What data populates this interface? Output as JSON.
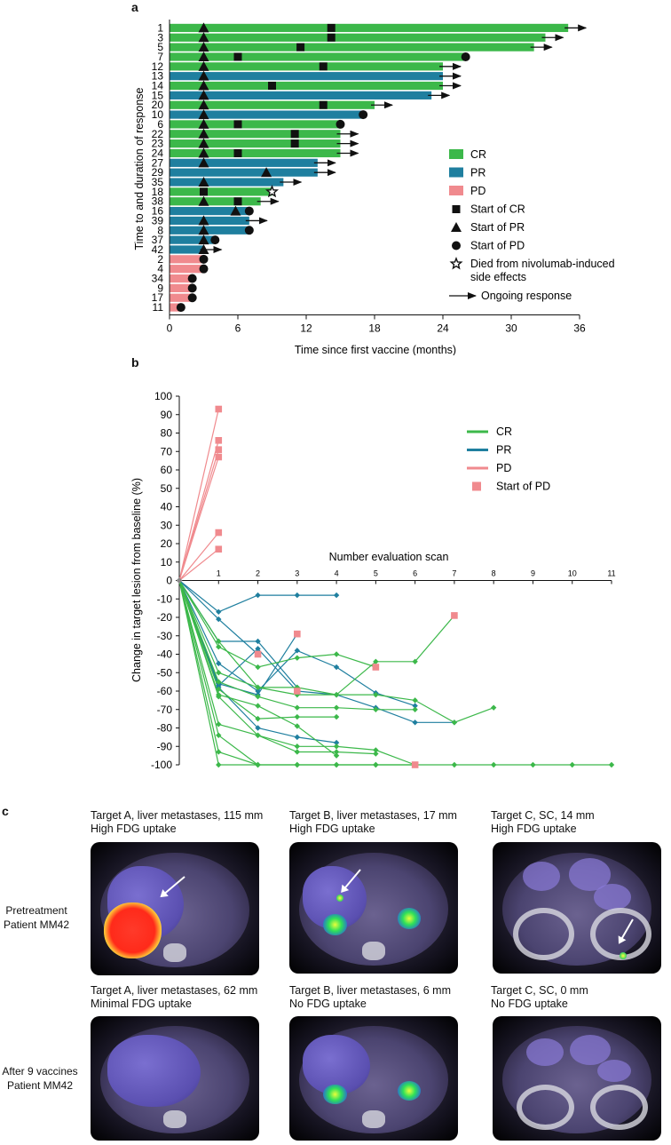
{
  "panel_letters": {
    "a": "a",
    "b": "b",
    "c": "c"
  },
  "colors": {
    "CR": "#3cb84a",
    "PR": "#1f7f9f",
    "PD": "#f08a8e"
  },
  "chart_data": [
    {
      "type": "bar",
      "orientation": "horizontal",
      "xlabel": "Time since first vaccine (months)",
      "ylabel": "Time to and duration of response",
      "xlim": [
        0,
        36
      ],
      "xticks": [
        0,
        6,
        12,
        18,
        24,
        30,
        36
      ],
      "legend": [
        {
          "label": "CR",
          "kind": "CR"
        },
        {
          "label": "PR",
          "kind": "PR"
        },
        {
          "label": "PD",
          "kind": "PD"
        },
        {
          "label": "Start of CR",
          "kind": "square"
        },
        {
          "label": "Start of PR",
          "kind": "triangle"
        },
        {
          "label": "Start of PD",
          "kind": "circle"
        },
        {
          "label": "Died from nivolumab-induced side effects",
          "kind": "star"
        },
        {
          "label": "Ongoing response",
          "kind": "arrow"
        }
      ],
      "patients": [
        {
          "id": "1",
          "response": "CR",
          "end": 35,
          "pr": 3,
          "cr": 14.2,
          "ongoing": true
        },
        {
          "id": "3",
          "response": "CR",
          "end": 33,
          "pr": 3,
          "cr": 14.2,
          "ongoing": true
        },
        {
          "id": "5",
          "response": "CR",
          "end": 32,
          "pr": 3,
          "cr": 11.5,
          "ongoing": true
        },
        {
          "id": "7",
          "response": "CR",
          "end": 26,
          "pr": 3,
          "cr": 6,
          "pd": 26
        },
        {
          "id": "12",
          "response": "CR",
          "end": 24,
          "pr": 3,
          "cr": 13.5,
          "ongoing": true
        },
        {
          "id": "13",
          "response": "PR",
          "end": 24,
          "pr": 3,
          "ongoing": true
        },
        {
          "id": "14",
          "response": "CR",
          "end": 24,
          "pr": 3,
          "cr": 9,
          "ongoing": true
        },
        {
          "id": "15",
          "response": "PR",
          "end": 23,
          "pr": 3,
          "ongoing": true
        },
        {
          "id": "20",
          "response": "CR",
          "end": 18,
          "pr": 3,
          "cr": 13.5,
          "ongoing": true
        },
        {
          "id": "10",
          "response": "PR",
          "end": 17,
          "pr": 3,
          "pd": 17
        },
        {
          "id": "6",
          "response": "CR",
          "end": 15,
          "pr": 3,
          "cr": 6,
          "pd": 15
        },
        {
          "id": "22",
          "response": "CR",
          "end": 15,
          "pr": 3,
          "cr": 11,
          "ongoing": true
        },
        {
          "id": "23",
          "response": "CR",
          "end": 15,
          "pr": 3,
          "cr": 11,
          "ongoing": true
        },
        {
          "id": "24",
          "response": "CR",
          "end": 15,
          "pr": 3,
          "cr": 6,
          "ongoing": true
        },
        {
          "id": "27",
          "response": "PR",
          "end": 13,
          "pr": 3,
          "ongoing": true
        },
        {
          "id": "29",
          "response": "PR",
          "end": 13,
          "pr": 8.5,
          "ongoing": true
        },
        {
          "id": "35",
          "response": "PR",
          "end": 10,
          "pr": 3,
          "ongoing": true
        },
        {
          "id": "18",
          "response": "CR",
          "end": 9,
          "cr": 3,
          "died": 9
        },
        {
          "id": "38",
          "response": "CR",
          "end": 8,
          "pr": 3,
          "cr": 6,
          "ongoing": true
        },
        {
          "id": "16",
          "response": "PR",
          "end": 7,
          "pr": 5.8,
          "pd": 7
        },
        {
          "id": "39",
          "response": "PR",
          "end": 7,
          "pr": 3,
          "ongoing": true
        },
        {
          "id": "8",
          "response": "PR",
          "end": 7,
          "pr": 3,
          "pd": 7
        },
        {
          "id": "37",
          "response": "PR",
          "end": 4,
          "pr": 3,
          "pd": 4
        },
        {
          "id": "42",
          "response": "PR",
          "end": 3,
          "pr": 3,
          "ongoing": true
        },
        {
          "id": "2",
          "response": "PD",
          "end": 3,
          "pd": 3
        },
        {
          "id": "4",
          "response": "PD",
          "end": 3,
          "pd": 3
        },
        {
          "id": "34",
          "response": "PD",
          "end": 2,
          "pd": 2
        },
        {
          "id": "9",
          "response": "PD",
          "end": 2,
          "pd": 2
        },
        {
          "id": "17",
          "response": "PD",
          "end": 2,
          "pd": 2
        },
        {
          "id": "11",
          "response": "PD",
          "end": 1,
          "pd": 1
        }
      ]
    },
    {
      "type": "line",
      "ylabel": "Change in target lesion from baseline (%)",
      "xlabel": "Number evaluation scan",
      "xlim": [
        0,
        11
      ],
      "ylim": [
        -100,
        100
      ],
      "xticks": [
        1,
        2,
        3,
        4,
        5,
        6,
        7,
        8,
        9,
        10,
        11
      ],
      "yticks": [
        100,
        90,
        80,
        70,
        60,
        50,
        40,
        30,
        20,
        10,
        0,
        -10,
        -20,
        -30,
        -40,
        -50,
        -60,
        -70,
        -80,
        -90,
        -100
      ],
      "legend": [
        {
          "label": "CR",
          "kind": "CR"
        },
        {
          "label": "PR",
          "kind": "PR"
        },
        {
          "label": "PD",
          "kind": "PD"
        },
        {
          "label": "Start of PD",
          "kind": "pdsquare"
        }
      ],
      "series": [
        {
          "response": "PD",
          "values": [
            0,
            93
          ]
        },
        {
          "response": "PD",
          "values": [
            0,
            76
          ]
        },
        {
          "response": "PD",
          "values": [
            0,
            71
          ]
        },
        {
          "response": "PD",
          "values": [
            0,
            67
          ]
        },
        {
          "response": "PD",
          "values": [
            0,
            26
          ]
        },
        {
          "response": "PD",
          "values": [
            0,
            17
          ]
        },
        {
          "response": "PR",
          "values": [
            0,
            -17,
            -8,
            -8,
            -8
          ]
        },
        {
          "response": "PR",
          "values": [
            0,
            -21,
            -40
          ]
        },
        {
          "response": "PR",
          "values": [
            0,
            -33,
            -33,
            -58
          ]
        },
        {
          "response": "PR",
          "values": [
            0,
            -45,
            -60,
            -38,
            -47,
            -61,
            -68
          ]
        },
        {
          "response": "PR",
          "values": [
            0,
            -58,
            -80,
            -85,
            -88
          ]
        },
        {
          "response": "PR",
          "values": [
            0,
            -56,
            -62,
            -29
          ]
        },
        {
          "response": "PR",
          "values": [
            0,
            -57,
            -37,
            -60,
            -62,
            -69,
            -77,
            -77
          ]
        },
        {
          "response": "CR",
          "values": [
            0,
            -36,
            -47,
            -42,
            -40,
            -47
          ]
        },
        {
          "response": "CR",
          "values": [
            0,
            -33,
            -58,
            -58,
            -62,
            -44,
            -44,
            -19
          ]
        },
        {
          "response": "CR",
          "values": [
            0,
            -50,
            -58,
            -62,
            -62,
            -62,
            -65,
            -77,
            -69
          ]
        },
        {
          "response": "CR",
          "values": [
            0,
            -55,
            -63,
            -69,
            -69,
            -70,
            -70
          ]
        },
        {
          "response": "CR",
          "values": [
            0,
            -59,
            -75,
            -74,
            -74
          ]
        },
        {
          "response": "CR",
          "values": [
            0,
            -62,
            -68,
            -79,
            -95
          ]
        },
        {
          "response": "CR",
          "values": [
            0,
            -63,
            -84,
            -93,
            -93,
            -94
          ]
        },
        {
          "response": "CR",
          "values": [
            0,
            -78,
            -84,
            -90,
            -90,
            -92,
            -100
          ]
        },
        {
          "response": "CR",
          "values": [
            0,
            -84,
            -100,
            -100,
            -100,
            -100,
            -100,
            -100,
            -100,
            -100,
            -100,
            -100
          ]
        },
        {
          "response": "CR",
          "values": [
            0,
            -93,
            -100
          ]
        },
        {
          "response": "CR",
          "values": [
            0,
            -100,
            -100,
            -100,
            -100,
            -100,
            -100
          ]
        }
      ],
      "pd_markers": [
        {
          "x": 1,
          "y": 93
        },
        {
          "x": 1,
          "y": 76
        },
        {
          "x": 1,
          "y": 71
        },
        {
          "x": 1,
          "y": 67
        },
        {
          "x": 1,
          "y": 26
        },
        {
          "x": 1,
          "y": 17
        },
        {
          "x": 2,
          "y": -40
        },
        {
          "x": 3,
          "y": -29
        },
        {
          "x": 3,
          "y": -60
        },
        {
          "x": 5,
          "y": -47
        },
        {
          "x": 6,
          "y": -100
        },
        {
          "x": 7,
          "y": -19
        }
      ]
    }
  ],
  "panel_c": {
    "top_row_label_1": "Pretreatment",
    "top_row_label_2": "Patient MM42",
    "bottom_row_label_1": "After 9 vaccines",
    "bottom_row_label_2": "Patient MM42",
    "captions_top": [
      {
        "line1": "Target A, liver metastases, 115 mm",
        "line2": "High FDG uptake"
      },
      {
        "line1": "Target B, liver metastases, 17 mm",
        "line2": "High FDG uptake"
      },
      {
        "line1": "Target C, SC, 14 mm",
        "line2": "High FDG uptake"
      }
    ],
    "captions_bottom": [
      {
        "line1": "Target A, liver metastases, 62 mm",
        "line2": "Minimal FDG uptake"
      },
      {
        "line1": "Target B, liver metastases, 6 mm",
        "line2": "No FDG uptake"
      },
      {
        "line1": "Target C,  SC, 0 mm",
        "line2": "No FDG uptake"
      }
    ]
  }
}
